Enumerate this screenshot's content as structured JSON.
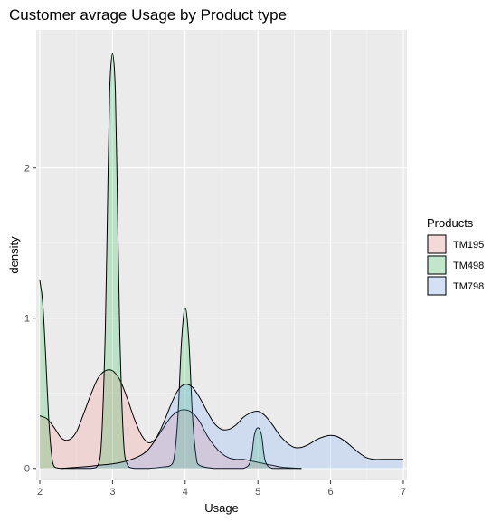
{
  "chart_data": {
    "type": "area",
    "title": "Customer avrage Usage by Product type",
    "xlabel": "Usage",
    "ylabel": "density",
    "xlim": [
      1.95,
      7.05
    ],
    "ylim": [
      -0.08,
      2.92
    ],
    "x_ticks": [
      2,
      3,
      4,
      5,
      6,
      7
    ],
    "y_ticks": [
      0,
      1,
      2
    ],
    "grid": true,
    "legend_position": "right",
    "legend_title": "Products",
    "series": [
      {
        "name": "TM195",
        "fill": "#F8766D",
        "x": [
          2.0,
          2.1,
          2.2,
          2.3,
          2.4,
          2.5,
          2.6,
          2.7,
          2.8,
          2.9,
          3.0,
          3.1,
          3.2,
          3.3,
          3.4,
          3.5,
          3.6,
          3.7,
          3.8,
          3.9,
          4.0,
          4.1,
          4.2,
          4.3,
          4.4,
          4.5,
          4.6,
          4.7,
          4.8,
          4.9,
          5.0,
          5.1,
          5.2,
          5.3,
          5.4,
          5.5,
          5.6
        ],
        "y": [
          0.35,
          0.33,
          0.27,
          0.2,
          0.19,
          0.24,
          0.36,
          0.49,
          0.6,
          0.65,
          0.65,
          0.59,
          0.47,
          0.33,
          0.22,
          0.17,
          0.2,
          0.27,
          0.34,
          0.38,
          0.39,
          0.37,
          0.31,
          0.22,
          0.15,
          0.1,
          0.07,
          0.06,
          0.06,
          0.05,
          0.04,
          0.03,
          0.02,
          0.01,
          0.005,
          0.002,
          0.0
        ]
      },
      {
        "name": "TM498",
        "fill": "#00BA38",
        "x": [
          2.0,
          2.04,
          2.08,
          2.12,
          2.16,
          2.2,
          2.3,
          2.5,
          2.7,
          2.8,
          2.85,
          2.9,
          2.93,
          2.96,
          3.0,
          3.04,
          3.07,
          3.1,
          3.15,
          3.2,
          3.3,
          3.5,
          3.7,
          3.8,
          3.85,
          3.9,
          3.95,
          4.0,
          4.05,
          4.1,
          4.15,
          4.2,
          4.4,
          4.6,
          4.8,
          4.9,
          4.95,
          5.0,
          5.05,
          5.1,
          5.2,
          5.4,
          5.6
        ],
        "y": [
          1.25,
          1.1,
          0.75,
          0.35,
          0.1,
          0.01,
          0.0,
          0.0,
          0.0,
          0.02,
          0.2,
          0.9,
          1.7,
          2.5,
          2.76,
          2.5,
          1.7,
          0.9,
          0.2,
          0.03,
          0.0,
          0.0,
          0.01,
          0.02,
          0.08,
          0.35,
          0.85,
          1.07,
          0.85,
          0.35,
          0.08,
          0.02,
          0.0,
          0.0,
          0.0,
          0.05,
          0.22,
          0.27,
          0.22,
          0.05,
          0.0,
          0.0,
          0.0
        ]
      },
      {
        "name": "TM798",
        "fill": "#619CFF",
        "x": [
          2.3,
          2.6,
          2.8,
          3.0,
          3.2,
          3.4,
          3.5,
          3.6,
          3.7,
          3.8,
          3.9,
          4.0,
          4.1,
          4.2,
          4.3,
          4.4,
          4.5,
          4.6,
          4.7,
          4.8,
          4.9,
          5.0,
          5.1,
          5.2,
          5.3,
          5.4,
          5.5,
          5.6,
          5.7,
          5.8,
          5.9,
          6.0,
          6.1,
          6.2,
          6.3,
          6.4,
          6.5,
          6.6,
          6.7,
          6.8,
          6.9,
          7.0
        ],
        "y": [
          0.0,
          0.01,
          0.02,
          0.03,
          0.05,
          0.09,
          0.13,
          0.2,
          0.3,
          0.42,
          0.52,
          0.56,
          0.54,
          0.47,
          0.38,
          0.3,
          0.26,
          0.26,
          0.29,
          0.34,
          0.37,
          0.38,
          0.35,
          0.29,
          0.22,
          0.17,
          0.14,
          0.14,
          0.16,
          0.19,
          0.21,
          0.22,
          0.21,
          0.18,
          0.14,
          0.1,
          0.07,
          0.06,
          0.06,
          0.06,
          0.06,
          0.06
        ]
      }
    ]
  }
}
